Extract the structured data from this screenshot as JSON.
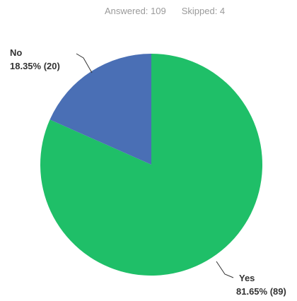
{
  "stats": {
    "answered": "Answered: 109",
    "skipped": "Skipped: 4"
  },
  "colors": {
    "yes": "#1fbf68",
    "no": "#4a6fb5"
  },
  "chart_data": {
    "type": "pie",
    "title": "",
    "slices": [
      {
        "name": "Yes",
        "percent": 81.65,
        "count": 89,
        "value_label": "81.65% (89)",
        "color": "#1fbf68"
      },
      {
        "name": "No",
        "percent": 18.35,
        "count": 20,
        "value_label": "18.35% (20)",
        "color": "#4a6fb5"
      }
    ],
    "start_angle": "12 o'clock, clockwise",
    "legend": "none"
  }
}
